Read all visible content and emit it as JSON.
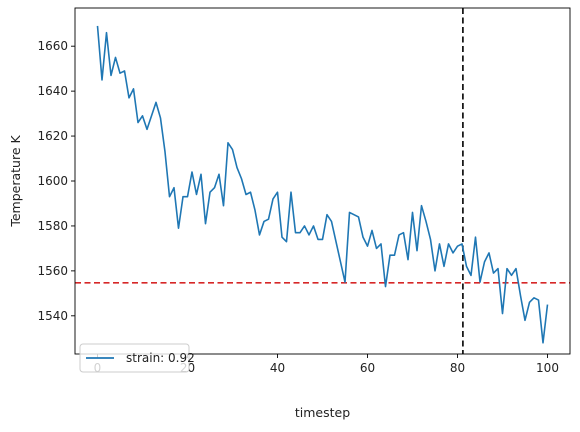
{
  "chart_data": {
    "type": "line",
    "title": "",
    "xlabel": "timestep",
    "ylabel": "Temperature K",
    "xlim": [
      -5,
      105
    ],
    "ylim": [
      1523,
      1677
    ],
    "xticks": [
      0,
      20,
      40,
      60,
      80,
      100
    ],
    "yticks": [
      1540,
      1560,
      1580,
      1600,
      1620,
      1640,
      1660
    ],
    "grid": false,
    "legend": {
      "position": "lower-left"
    },
    "series": [
      {
        "name": "strain: 0.92",
        "color": "#1f77b4",
        "x": [
          0,
          1,
          2,
          3,
          4,
          5,
          6,
          7,
          8,
          9,
          10,
          11,
          12,
          13,
          14,
          15,
          16,
          17,
          18,
          19,
          20,
          21,
          22,
          23,
          24,
          25,
          26,
          27,
          28,
          29,
          30,
          31,
          32,
          33,
          34,
          35,
          36,
          37,
          38,
          39,
          40,
          41,
          42,
          43,
          44,
          45,
          46,
          47,
          48,
          49,
          50,
          51,
          52,
          53,
          54,
          55,
          56,
          57,
          58,
          59,
          60,
          61,
          62,
          63,
          64,
          65,
          66,
          67,
          68,
          69,
          70,
          71,
          72,
          73,
          74,
          75,
          76,
          77,
          78,
          79,
          80,
          81,
          82,
          83,
          84,
          85,
          86,
          87,
          88,
          89,
          90,
          91,
          92,
          93,
          94,
          95,
          96,
          97,
          98,
          99,
          100
        ],
        "y": [
          1669,
          1645,
          1666,
          1647,
          1655,
          1648,
          1649,
          1637,
          1641,
          1626,
          1629,
          1623,
          1629,
          1635,
          1628,
          1613,
          1593,
          1597,
          1579,
          1593,
          1593,
          1604,
          1594,
          1603,
          1581,
          1595,
          1597,
          1603,
          1589,
          1617,
          1614,
          1606,
          1601,
          1594,
          1595,
          1587,
          1576,
          1582,
          1583,
          1592,
          1595,
          1575,
          1573,
          1595,
          1577,
          1577,
          1580,
          1576,
          1580,
          1574,
          1574,
          1585,
          1582,
          1573,
          1564,
          1555,
          1586,
          1585,
          1584,
          1575,
          1571,
          1578,
          1570,
          1572,
          1553,
          1567,
          1567,
          1576,
          1577,
          1565,
          1586,
          1569,
          1589,
          1582,
          1574,
          1560,
          1572,
          1562,
          1572,
          1568,
          1571,
          1572,
          1562,
          1558,
          1575,
          1555,
          1564,
          1568,
          1559,
          1561,
          1541,
          1561,
          1558,
          1561,
          1549,
          1538,
          1546,
          1548,
          1547,
          1528,
          1545
        ]
      }
    ],
    "reference_lines": [
      {
        "orientation": "horizontal",
        "value": 1554.7,
        "color": "#d62728",
        "style": "dashed"
      },
      {
        "orientation": "vertical",
        "value": 81.2,
        "color": "#000000",
        "style": "dashed"
      }
    ]
  }
}
